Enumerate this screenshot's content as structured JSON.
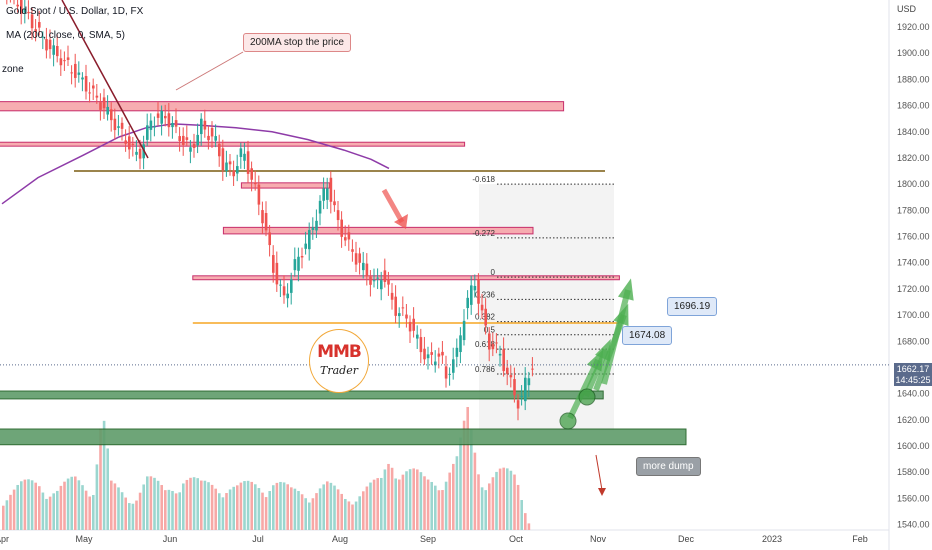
{
  "header": {
    "symbol_line": "Gold Spot / U.S. Dollar, 1D, FX",
    "ma_line": "MA (200, close, 0, SMA, 5)",
    "extra_line": "zone",
    "currency": "USD"
  },
  "price_tags": {
    "last_price": "1662.17",
    "countdown": "14:45:25"
  },
  "annotations": {
    "ma_callout": "200MA stop the price",
    "target_1": "1674.08",
    "target_2": "1696.19",
    "dump_callout": "more dump",
    "fib_levels": [
      "-0.618",
      "-0.272",
      "0",
      "0.236",
      "0.382",
      "0.5",
      "0.618",
      "0.786"
    ]
  },
  "logo": {
    "brand_text": "MMB",
    "brand_sub": "Trader"
  },
  "colors": {
    "up": "#26a69a",
    "down": "#ef5350",
    "ma": "#8e3ba8",
    "resistance_fill": "#f7a5a9",
    "resistance_edge": "#c2185b",
    "support_fill": "#5f9c6a",
    "support_edge": "#1b5e20",
    "accent_orange": "#f5a623"
  },
  "chart_data": {
    "type": "candlestick",
    "title": "Gold Spot / U.S. Dollar, 1D, FX",
    "ylabel": "USD",
    "ylim": [
      1535,
      1935
    ],
    "y_ticks": [
      1540,
      1560,
      1580,
      1600,
      1620,
      1640,
      1660,
      1680,
      1700,
      1720,
      1740,
      1760,
      1780,
      1800,
      1820,
      1840,
      1860,
      1880,
      1900,
      1920
    ],
    "x_ticks": [
      "Apr",
      "May",
      "Jun",
      "Jul",
      "Aug",
      "Sep",
      "Oct",
      "Nov",
      "Dec",
      "2023",
      "Feb"
    ],
    "price_path": [
      [
        1,
        1950
      ],
      [
        12,
        1931
      ],
      [
        25,
        1905
      ],
      [
        40,
        1885
      ],
      [
        55,
        1860
      ],
      [
        66,
        1838
      ],
      [
        75,
        1820
      ],
      [
        82,
        1848
      ],
      [
        90,
        1852
      ],
      [
        96,
        1840
      ],
      [
        104,
        1826
      ],
      [
        110,
        1845
      ],
      [
        118,
        1832
      ],
      [
        122,
        1815
      ],
      [
        128,
        1810
      ],
      [
        133,
        1826
      ],
      [
        140,
        1795
      ],
      [
        145,
        1770
      ],
      [
        150,
        1735
      ],
      [
        156,
        1712
      ],
      [
        162,
        1738
      ],
      [
        170,
        1760
      ],
      [
        176,
        1785
      ],
      [
        180,
        1800
      ],
      [
        186,
        1770
      ],
      [
        193,
        1750
      ],
      [
        200,
        1735
      ],
      [
        207,
        1722
      ],
      [
        211,
        1733
      ],
      [
        217,
        1705
      ],
      [
        223,
        1700
      ],
      [
        227,
        1690
      ],
      [
        232,
        1674
      ],
      [
        237,
        1665
      ],
      [
        243,
        1672
      ],
      [
        246,
        1650
      ],
      [
        249,
        1665
      ],
      [
        252,
        1670
      ],
      [
        257,
        1708
      ],
      [
        262,
        1725
      ],
      [
        266,
        1700
      ],
      [
        270,
        1678
      ],
      [
        275,
        1673
      ],
      [
        280,
        1655
      ],
      [
        284,
        1640
      ],
      [
        287,
        1630
      ],
      [
        290,
        1648
      ],
      [
        294,
        1662
      ]
    ],
    "ma200": [
      [
        0,
        1785
      ],
      [
        20,
        1805
      ],
      [
        45,
        1822
      ],
      [
        65,
        1836
      ],
      [
        80,
        1843
      ],
      [
        95,
        1846
      ],
      [
        110,
        1845
      ],
      [
        130,
        1843
      ],
      [
        150,
        1840
      ],
      [
        170,
        1834
      ],
      [
        190,
        1826
      ],
      [
        205,
        1819
      ],
      [
        215,
        1812
      ]
    ],
    "volume": [
      [
        0,
        45
      ],
      [
        10,
        55
      ],
      [
        20,
        60
      ],
      [
        30,
        50
      ],
      [
        40,
        62
      ],
      [
        50,
        58
      ],
      [
        55,
        150
      ],
      [
        60,
        55
      ],
      [
        70,
        40
      ],
      [
        80,
        65
      ],
      [
        90,
        48
      ],
      [
        100,
        70
      ],
      [
        110,
        55
      ],
      [
        120,
        60
      ],
      [
        130,
        52
      ],
      [
        140,
        58
      ],
      [
        150,
        62
      ],
      [
        160,
        48
      ],
      [
        170,
        50
      ],
      [
        180,
        55
      ],
      [
        190,
        42
      ],
      [
        200,
        50
      ],
      [
        210,
        60
      ],
      [
        215,
        95
      ],
      [
        225,
        75
      ],
      [
        235,
        60
      ],
      [
        245,
        70
      ],
      [
        252,
        85
      ],
      [
        258,
        140
      ],
      [
        265,
        70
      ],
      [
        275,
        72
      ],
      [
        285,
        65
      ],
      [
        292,
        12
      ]
    ],
    "zones": [
      {
        "kind": "resistance",
        "ylow": 1856,
        "yhigh": 1863,
        "xstart": -20,
        "xend": 312
      },
      {
        "kind": "resistance",
        "ylow": 1829,
        "yhigh": 1832,
        "xstart": -20,
        "xend": 257
      },
      {
        "kind": "resistance",
        "ylow": 1797,
        "yhigh": 1801,
        "xstart": 133,
        "xend": 182
      },
      {
        "kind": "resistance",
        "ylow": 1762,
        "yhigh": 1767,
        "xstart": 123,
        "xend": 295
      },
      {
        "kind": "resistance",
        "ylow": 1727,
        "yhigh": 1730,
        "xstart": 106,
        "xend": 343
      },
      {
        "kind": "support",
        "ylow": 1636,
        "yhigh": 1642,
        "xstart": -20,
        "xend": 334
      },
      {
        "kind": "support",
        "ylow": 1601,
        "yhigh": 1613,
        "xstart": -20,
        "xend": 380
      }
    ],
    "levels": [
      {
        "price": 1810,
        "xstart": 40,
        "xend": 335,
        "color": "#7a5c10"
      },
      {
        "price": 1694,
        "xstart": 106,
        "xend": 343,
        "color": "#f5a623"
      }
    ],
    "fib_prices": [
      1800,
      1759,
      1729,
      1712,
      1695,
      1685,
      1674,
      1655
    ]
  }
}
